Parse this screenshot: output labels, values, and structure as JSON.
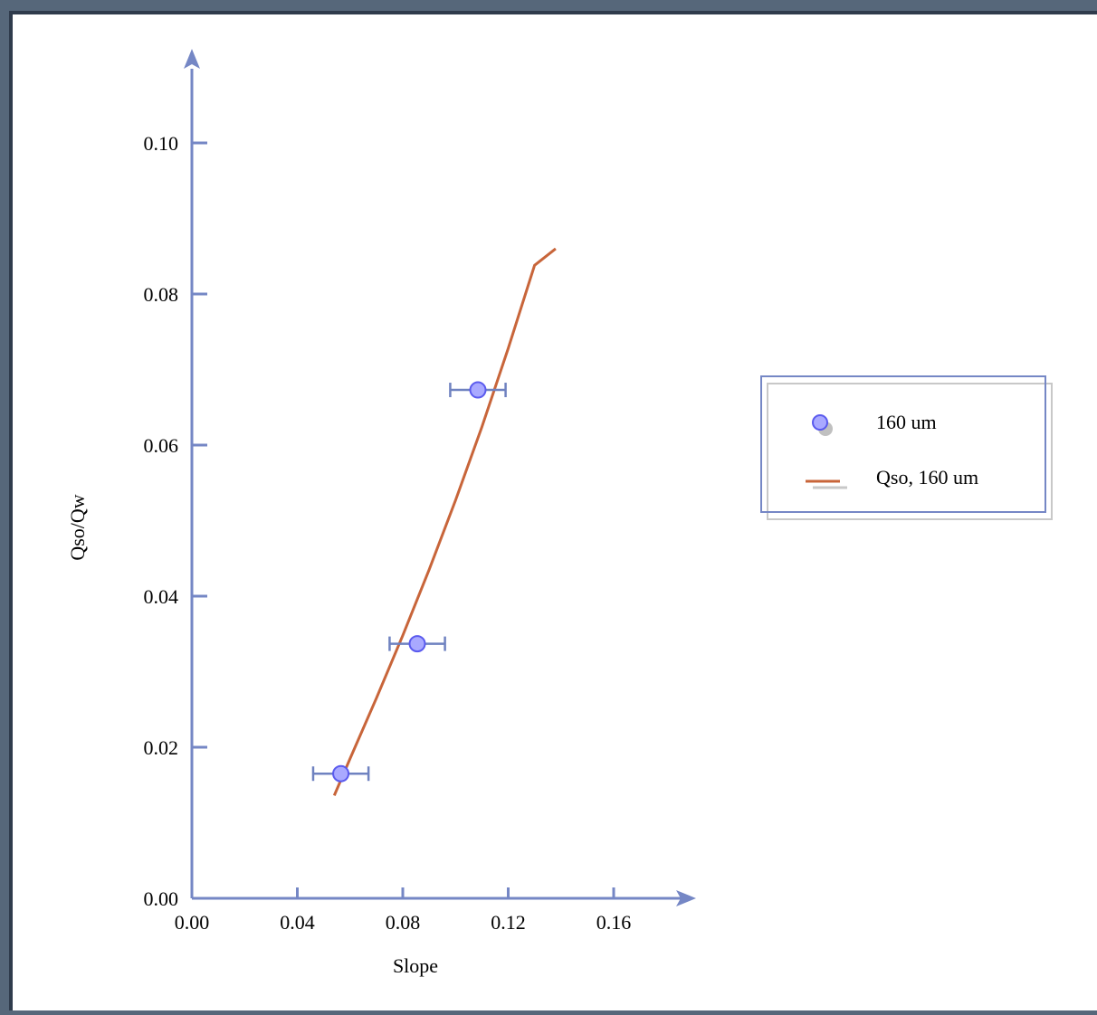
{
  "chart_data": {
    "type": "scatter",
    "xlabel": "Slope",
    "ylabel": "Qso/Qw",
    "xlim": [
      0,
      0.19
    ],
    "ylim": [
      0,
      0.11
    ],
    "x_ticks": [
      0.0,
      0.04,
      0.08,
      0.12,
      0.16
    ],
    "x_tick_labels": [
      "0.00",
      "0.04",
      "0.08",
      "0.12",
      "0.16"
    ],
    "y_ticks": [
      0.0,
      0.02,
      0.04,
      0.06,
      0.08,
      0.1
    ],
    "y_tick_labels": [
      "0.00",
      "0.02",
      "0.04",
      "0.06",
      "0.08",
      "0.10"
    ],
    "grid": false,
    "legend_position": "right",
    "series": [
      {
        "name": "160 um",
        "kind": "points_with_x_error",
        "color": "#a9a9ff",
        "edge_color": "#5a5aee",
        "errorbar_color": "#6f82c0",
        "points": [
          {
            "x": 0.0565,
            "y": 0.0165,
            "xerr": 0.0105
          },
          {
            "x": 0.0855,
            "y": 0.0337,
            "xerr": 0.0105
          },
          {
            "x": 0.1085,
            "y": 0.0673,
            "xerr": 0.0105
          }
        ]
      },
      {
        "name": "Qso, 160 um",
        "kind": "line",
        "color": "#c8653a",
        "x": [
          0.054,
          0.06,
          0.07,
          0.08,
          0.09,
          0.1,
          0.11,
          0.12,
          0.13,
          0.138
        ],
        "y": [
          0.0136,
          0.0185,
          0.0265,
          0.0348,
          0.0435,
          0.0527,
          0.0624,
          0.0728,
          0.0838,
          0.086
        ]
      }
    ]
  },
  "legend": {
    "entries": [
      {
        "label": "160 um"
      },
      {
        "label": "Qso, 160 um"
      }
    ]
  },
  "colors": {
    "axis": "#7587c5",
    "frame": "#56677a",
    "background": "#ffffff"
  }
}
